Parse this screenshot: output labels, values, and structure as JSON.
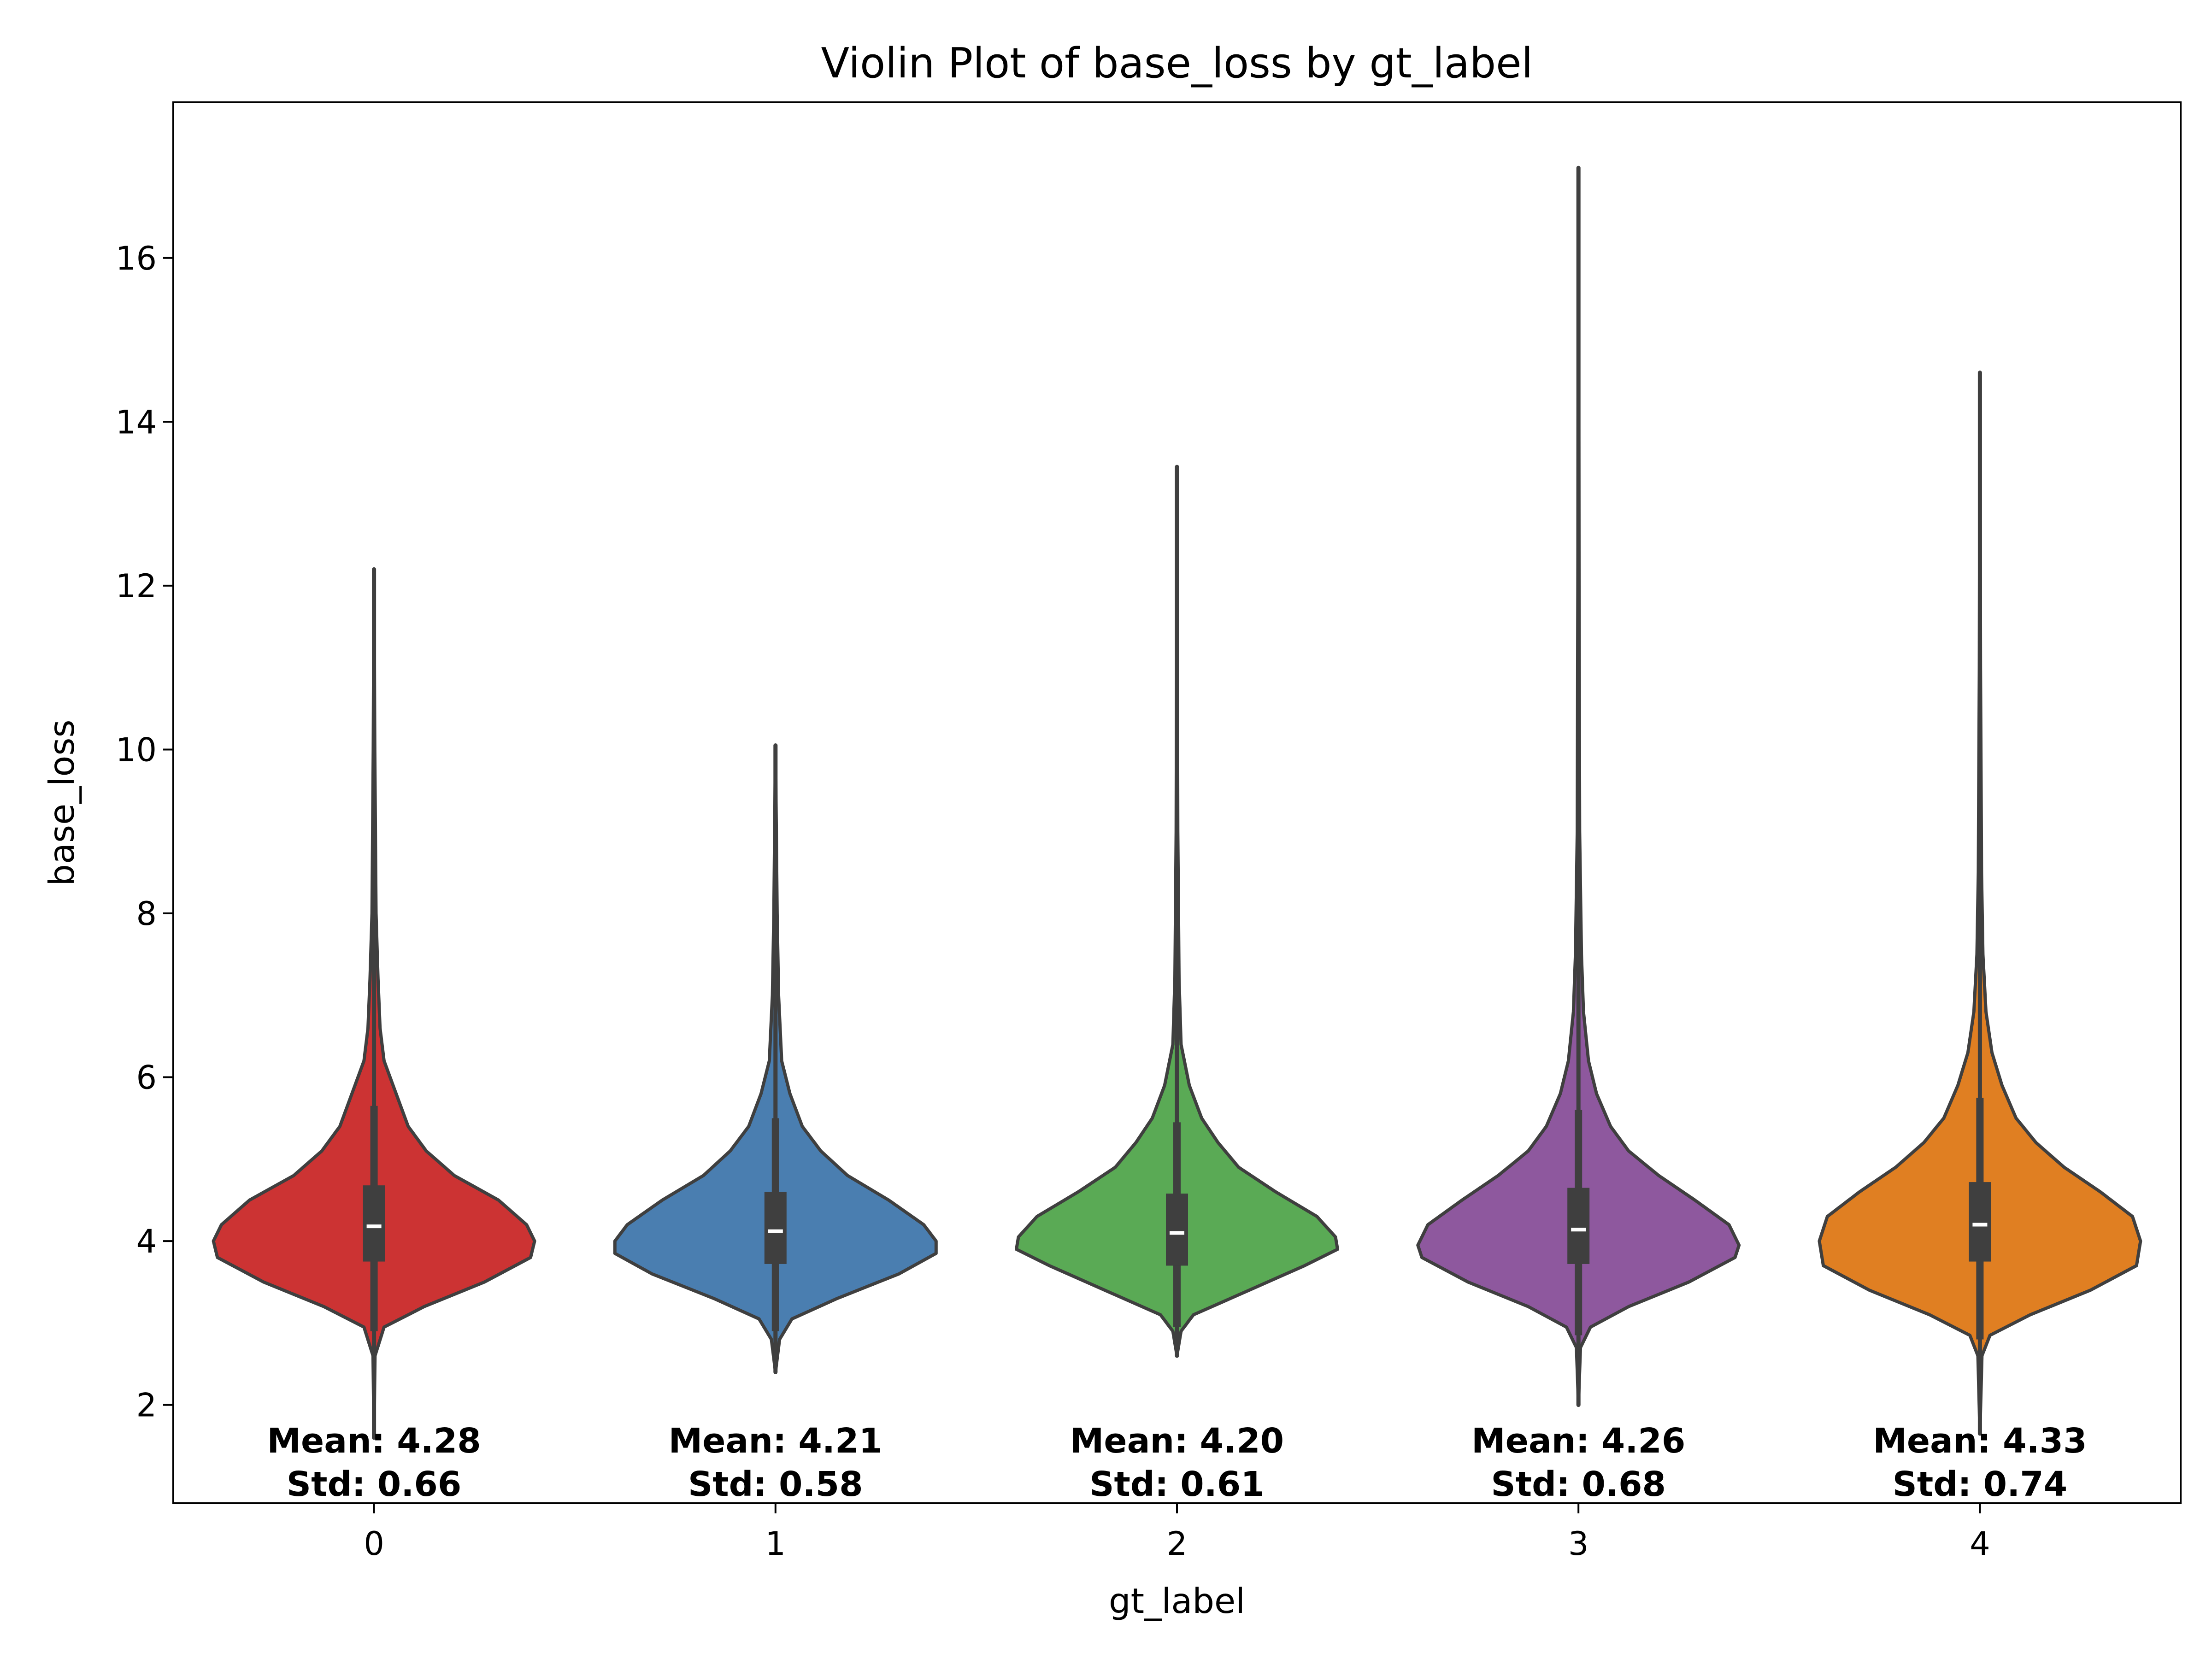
{
  "chart_data": {
    "type": "violin",
    "title": "Violin Plot of base_loss by gt_label",
    "xlabel": "gt_label",
    "ylabel": "base_loss",
    "ylim": [
      0.8,
      17.9
    ],
    "yticks": [
      2,
      4,
      6,
      8,
      10,
      12,
      14,
      16
    ],
    "grid": false,
    "legend": "none",
    "categories": [
      "0",
      "1",
      "2",
      "3",
      "4"
    ],
    "series": [
      {
        "category": "0",
        "color": "#cc3333",
        "min": 1.6,
        "max": 12.2,
        "q1": 3.75,
        "median": 4.18,
        "q3": 4.68,
        "whisker_low": 2.9,
        "whisker_high": 5.65,
        "mean_label": "Mean: 4.28",
        "std_label": "Std: 0.66",
        "density": [
          [
            1.6,
            0
          ],
          [
            2.6,
            0.005
          ],
          [
            2.95,
            0.05
          ],
          [
            3.2,
            0.25
          ],
          [
            3.5,
            0.55
          ],
          [
            3.8,
            0.78
          ],
          [
            4.0,
            0.8
          ],
          [
            4.2,
            0.76
          ],
          [
            4.5,
            0.62
          ],
          [
            4.8,
            0.4
          ],
          [
            5.1,
            0.26
          ],
          [
            5.4,
            0.17
          ],
          [
            5.8,
            0.11
          ],
          [
            6.2,
            0.05
          ],
          [
            6.6,
            0.03
          ],
          [
            7.2,
            0.02
          ],
          [
            8.0,
            0.01
          ],
          [
            10.0,
            0.004
          ],
          [
            12.2,
            0
          ]
        ]
      },
      {
        "category": "1",
        "color": "#4a7eb0",
        "min": 2.4,
        "max": 10.05,
        "q1": 3.72,
        "median": 4.12,
        "q3": 4.6,
        "whisker_low": 2.9,
        "whisker_high": 5.5,
        "mean_label": "Mean: 4.21",
        "std_label": "Std: 0.58",
        "density": [
          [
            2.4,
            0
          ],
          [
            2.8,
            0.02
          ],
          [
            3.05,
            0.08
          ],
          [
            3.3,
            0.3
          ],
          [
            3.6,
            0.6
          ],
          [
            3.85,
            0.78
          ],
          [
            4.0,
            0.78
          ],
          [
            4.2,
            0.72
          ],
          [
            4.5,
            0.55
          ],
          [
            4.8,
            0.35
          ],
          [
            5.1,
            0.22
          ],
          [
            5.4,
            0.13
          ],
          [
            5.8,
            0.07
          ],
          [
            6.2,
            0.03
          ],
          [
            7.0,
            0.015
          ],
          [
            8.0,
            0.008
          ],
          [
            10.05,
            0
          ]
        ]
      },
      {
        "category": "2",
        "color": "#5aaa55",
        "min": 2.6,
        "max": 13.45,
        "q1": 3.7,
        "median": 4.1,
        "q3": 4.58,
        "whisker_low": 2.95,
        "whisker_high": 5.45,
        "mean_label": "Mean: 4.20",
        "std_label": "Std: 0.61",
        "density": [
          [
            2.6,
            0
          ],
          [
            2.9,
            0.02
          ],
          [
            3.1,
            0.08
          ],
          [
            3.4,
            0.35
          ],
          [
            3.7,
            0.62
          ],
          [
            3.9,
            0.78
          ],
          [
            4.05,
            0.77
          ],
          [
            4.3,
            0.68
          ],
          [
            4.6,
            0.48
          ],
          [
            4.9,
            0.3
          ],
          [
            5.2,
            0.2
          ],
          [
            5.5,
            0.12
          ],
          [
            5.9,
            0.06
          ],
          [
            6.4,
            0.02
          ],
          [
            7.2,
            0.01
          ],
          [
            9.0,
            0.004
          ],
          [
            13.45,
            0
          ]
        ]
      },
      {
        "category": "3",
        "color": "#8e589e",
        "min": 2.0,
        "max": 17.1,
        "q1": 3.72,
        "median": 4.14,
        "q3": 4.65,
        "whisker_low": 2.85,
        "whisker_high": 5.6,
        "mean_label": "Mean: 4.26",
        "std_label": "Std: 0.68",
        "density": [
          [
            2.0,
            0
          ],
          [
            2.7,
            0.01
          ],
          [
            2.95,
            0.06
          ],
          [
            3.2,
            0.25
          ],
          [
            3.5,
            0.55
          ],
          [
            3.8,
            0.78
          ],
          [
            3.95,
            0.8
          ],
          [
            4.2,
            0.75
          ],
          [
            4.5,
            0.58
          ],
          [
            4.8,
            0.4
          ],
          [
            5.1,
            0.25
          ],
          [
            5.4,
            0.16
          ],
          [
            5.8,
            0.09
          ],
          [
            6.2,
            0.05
          ],
          [
            6.8,
            0.025
          ],
          [
            7.5,
            0.015
          ],
          [
            9.0,
            0.006
          ],
          [
            12.0,
            0.003
          ],
          [
            17.1,
            0
          ]
        ]
      },
      {
        "category": "4",
        "color": "#e07f22",
        "min": 1.65,
        "max": 14.6,
        "q1": 3.75,
        "median": 4.2,
        "q3": 4.72,
        "whisker_low": 2.8,
        "whisker_high": 5.75,
        "mean_label": "Mean: 4.33",
        "std_label": "Std: 0.74",
        "density": [
          [
            1.65,
            0
          ],
          [
            2.6,
            0.01
          ],
          [
            2.85,
            0.05
          ],
          [
            3.1,
            0.25
          ],
          [
            3.4,
            0.55
          ],
          [
            3.7,
            0.78
          ],
          [
            4.0,
            0.8
          ],
          [
            4.3,
            0.76
          ],
          [
            4.6,
            0.6
          ],
          [
            4.9,
            0.42
          ],
          [
            5.2,
            0.28
          ],
          [
            5.5,
            0.18
          ],
          [
            5.9,
            0.11
          ],
          [
            6.3,
            0.06
          ],
          [
            6.8,
            0.03
          ],
          [
            7.5,
            0.015
          ],
          [
            8.5,
            0.008
          ],
          [
            11.0,
            0.003
          ],
          [
            14.6,
            0
          ]
        ]
      }
    ]
  }
}
